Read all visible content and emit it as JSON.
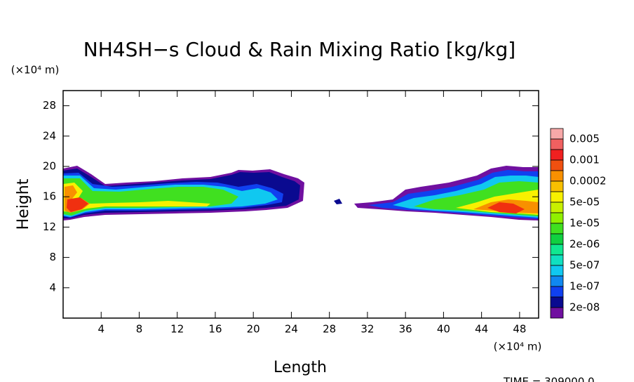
{
  "chart_data": {
    "type": "contour",
    "title": "NH4SH−s Cloud & Rain Mixing Ratio [kg/kg]",
    "x_label": "Length",
    "y_label": "Height",
    "x_unit": "(×10⁴ m)",
    "y_unit": "(×10⁴ m)",
    "time_label": "TIME = 309000.0",
    "xlim": [
      0,
      50
    ],
    "ylim": [
      0,
      30
    ],
    "xticks": [
      4,
      8,
      12,
      16,
      20,
      24,
      28,
      32,
      36,
      40,
      44,
      48
    ],
    "yticks": [
      4,
      8,
      12,
      16,
      20,
      24,
      28
    ],
    "colorbar_colors": [
      "#f8a8a8",
      "#f06060",
      "#f02020",
      "#f05010",
      "#f89000",
      "#f8c000",
      "#f8f000",
      "#c8f000",
      "#90f000",
      "#40e020",
      "#10d040",
      "#10e890",
      "#10e0c0",
      "#10c8f0",
      "#1088f0",
      "#1040f0",
      "#0a0a90",
      "#7010a0"
    ],
    "levels": [
      0.005,
      0.001,
      0.0002,
      {
        "value": 5e-05,
        "label": "5e-05"
      },
      {
        "value": 1e-05,
        "label": "1e-05"
      },
      {
        "value": 2e-06,
        "label": "2e-06"
      },
      {
        "value": 5e-07,
        "label": "5e-07"
      },
      {
        "value": 1e-07,
        "label": "1e-07"
      },
      {
        "value": 2e-08,
        "label": "2e-08"
      }
    ]
  }
}
